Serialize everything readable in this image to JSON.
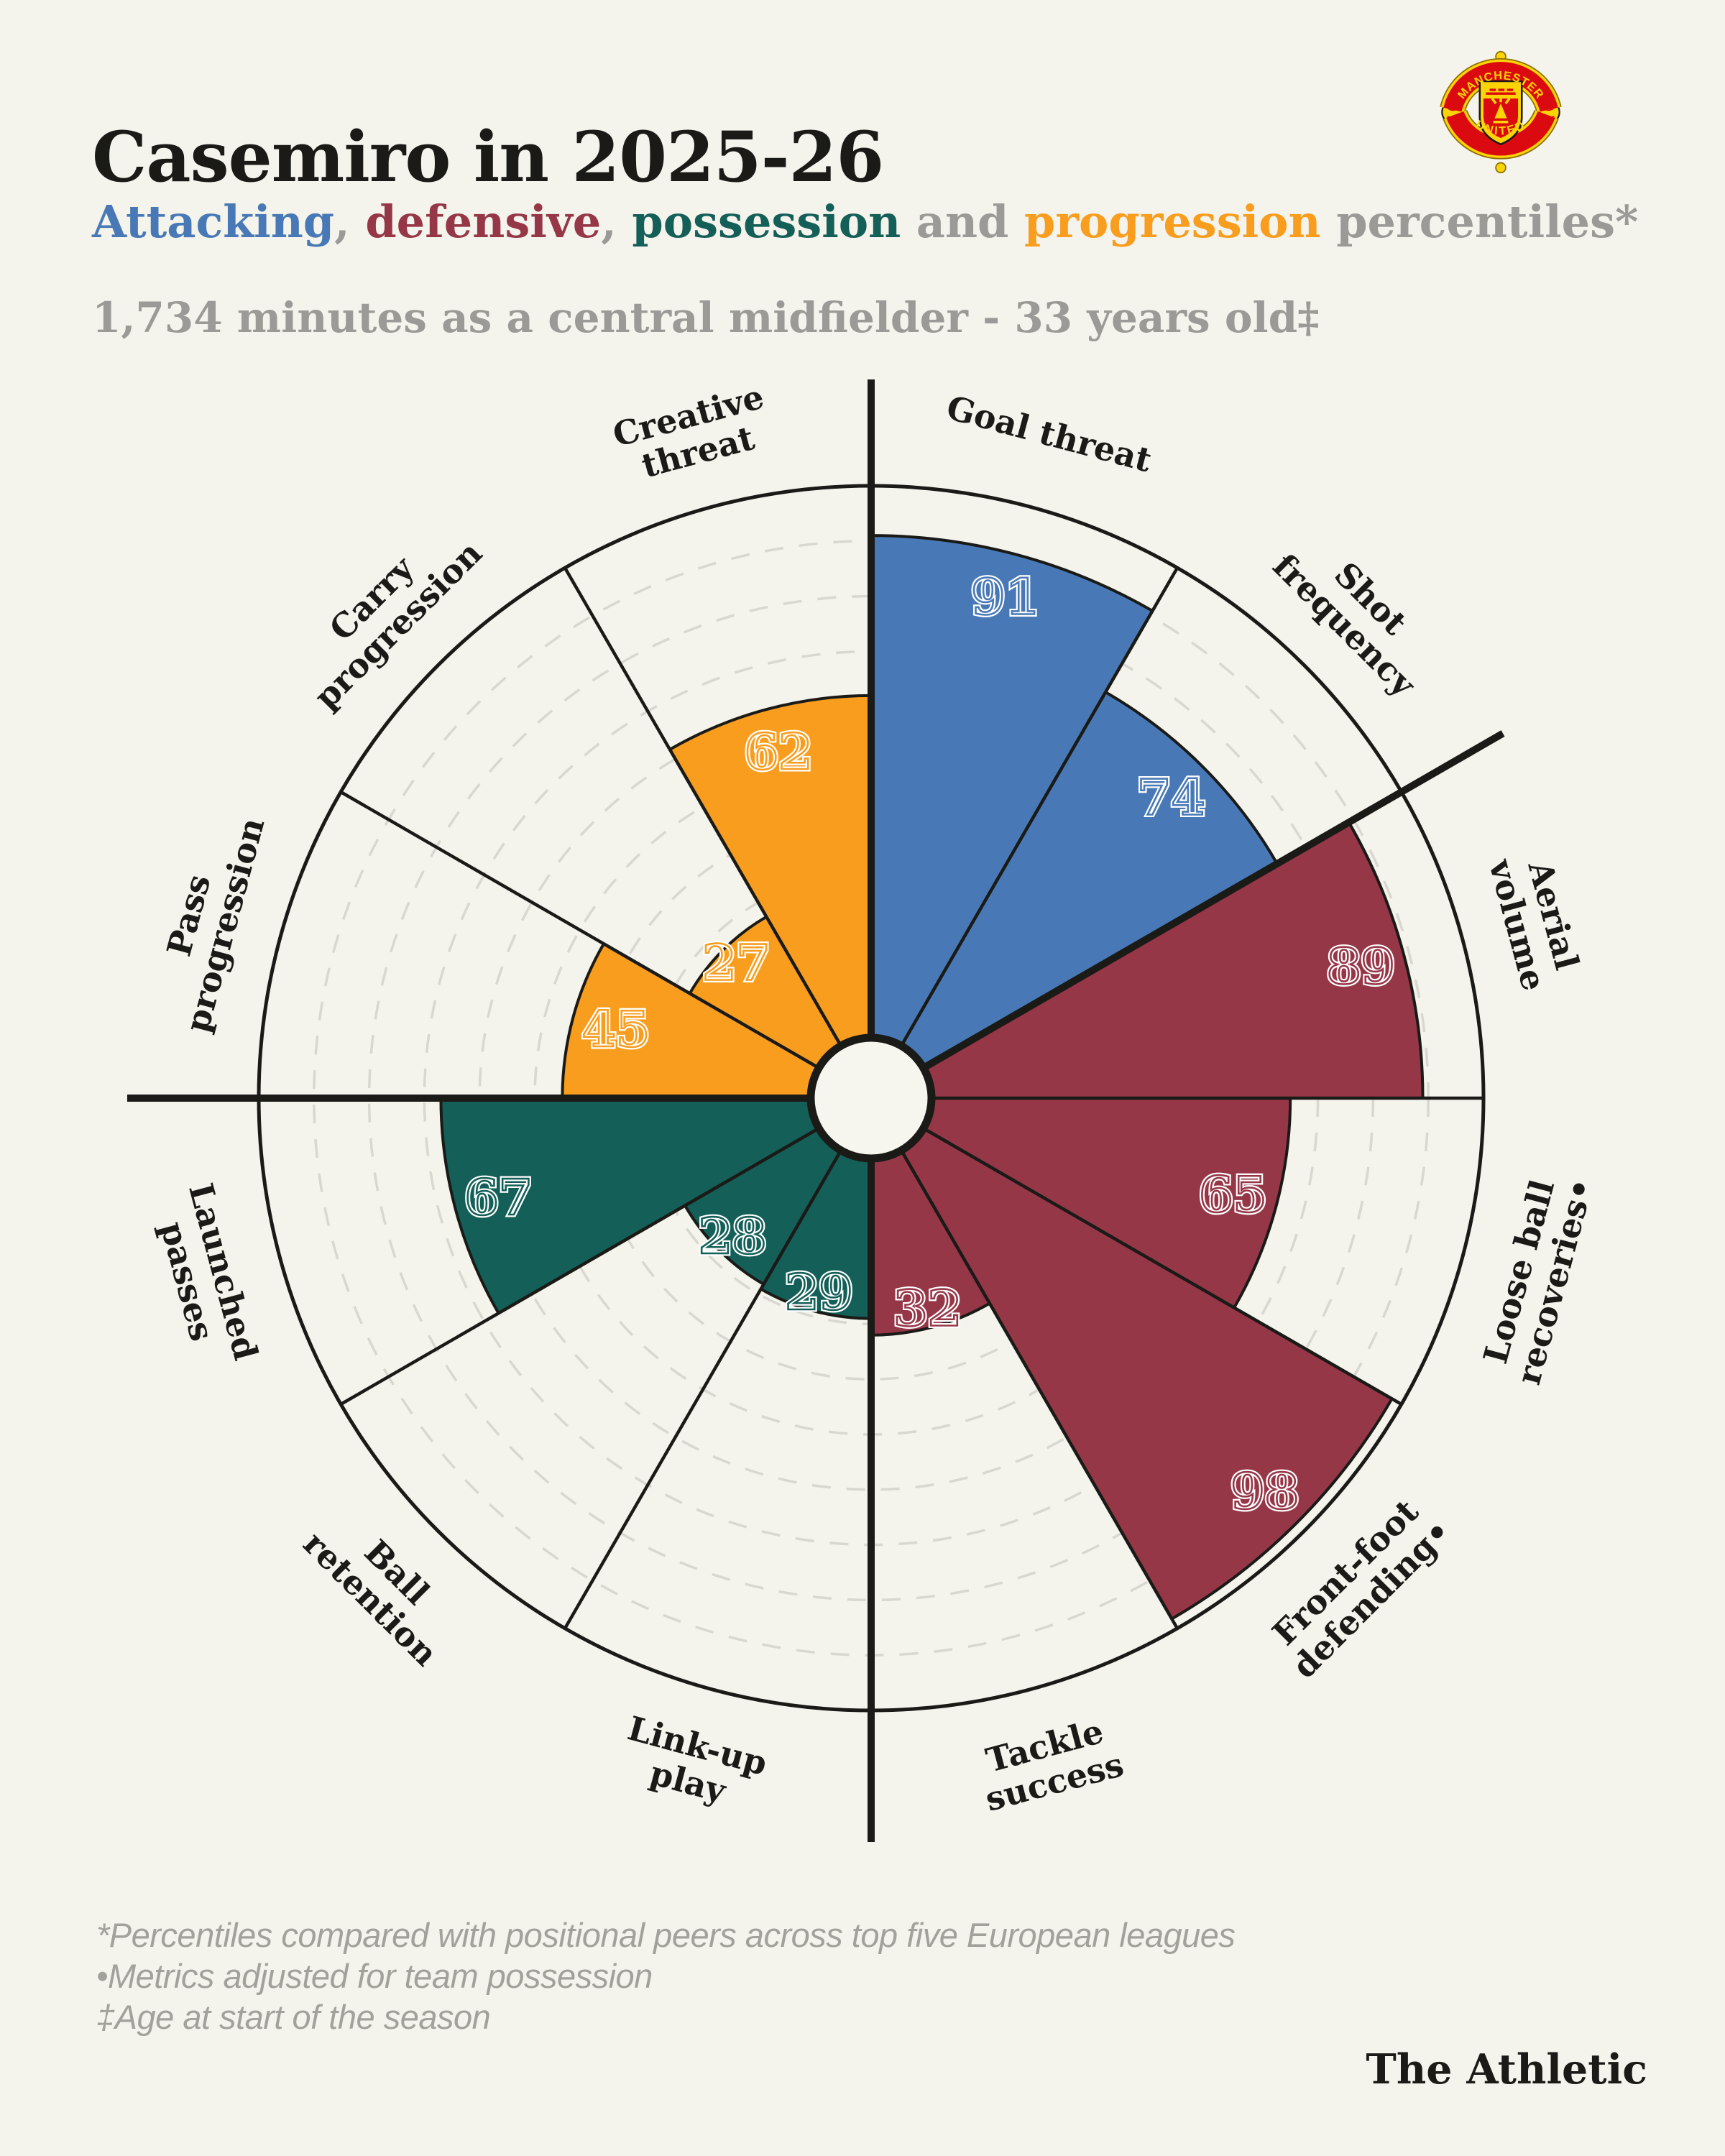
{
  "page": {
    "background": "#f4f3ec",
    "ink": "#1a1a17",
    "muted_text": "#9b9a96",
    "footnote_text": "#a2a19b",
    "grid_line": "#d8d7d0",
    "hub_fill": "#f6f5ee"
  },
  "header": {
    "title": "Casemiro in 2025-26",
    "subtitle_parts": [
      {
        "text": "Attacking",
        "color_key": "attacking"
      },
      {
        "text": ", ",
        "color_key": "muted"
      },
      {
        "text": "defensive",
        "color_key": "defensive"
      },
      {
        "text": ", ",
        "color_key": "muted"
      },
      {
        "text": "possession",
        "color_key": "possession"
      },
      {
        "text": " and ",
        "color_key": "muted"
      },
      {
        "text": "progression",
        "color_key": "progression"
      },
      {
        "text": " percentiles*",
        "color_key": "muted"
      }
    ],
    "context_line": "1,734 minutes as a central midfielder - 33 years old‡",
    "club_badge": {
      "name": "Manchester United crest",
      "top_text": "MANCHESTER",
      "bottom_text": "UNITED",
      "red": "#da0a10",
      "gold": "#fcd405"
    }
  },
  "colors": {
    "attacking": "#4879b6",
    "defensive": "#963748",
    "possession": "#145f58",
    "progression": "#f89d1e",
    "muted": "#9b9a96"
  },
  "chart_data": {
    "type": "pizza-radar",
    "units": "percentile",
    "scale_min": 0,
    "scale_max": 100,
    "start_angle_deg": 0,
    "direction": "clockwise",
    "slice_span_deg": 30,
    "gridlines": [
      10,
      20,
      30,
      40,
      50,
      60,
      70,
      80,
      90
    ],
    "group_boundary_angles_deg": [
      0,
      60,
      180,
      270
    ],
    "categories": [
      {
        "label": "Goal threat",
        "lines": [
          "Goal threat"
        ],
        "value": 91,
        "group": "attacking"
      },
      {
        "label": "Shot frequency",
        "lines": [
          "Shot",
          "frequency"
        ],
        "value": 74,
        "group": "attacking"
      },
      {
        "label": "Aerial volume",
        "lines": [
          "Aerial",
          "volume"
        ],
        "value": 89,
        "group": "defensive"
      },
      {
        "label": "Loose ball recoveries•",
        "lines": [
          "Loose ball",
          "recoveries•"
        ],
        "value": 65,
        "group": "defensive"
      },
      {
        "label": "Front-foot defending•",
        "lines": [
          "Front-foot",
          "defending•"
        ],
        "value": 98,
        "group": "defensive"
      },
      {
        "label": "Tackle success",
        "lines": [
          "Tackle",
          "success"
        ],
        "value": 32,
        "group": "defensive"
      },
      {
        "label": "Link-up play",
        "lines": [
          "Link-up",
          "play"
        ],
        "value": 29,
        "group": "possession"
      },
      {
        "label": "Ball retention",
        "lines": [
          "Ball",
          "retention"
        ],
        "value": 28,
        "group": "possession"
      },
      {
        "label": "Launched passes",
        "lines": [
          "Launched",
          "passes"
        ],
        "value": 67,
        "group": "possession"
      },
      {
        "label": "Pass progression",
        "lines": [
          "Pass",
          "progression"
        ],
        "value": 45,
        "group": "progression"
      },
      {
        "label": "Carry progression",
        "lines": [
          "Carry",
          "progression"
        ],
        "value": 27,
        "group": "progression"
      },
      {
        "label": "Creative threat",
        "lines": [
          "Creative",
          "threat"
        ],
        "value": 62,
        "group": "progression"
      }
    ]
  },
  "footnotes": [
    "*Percentiles compared with positional peers across top five European leagues",
    "•Metrics adjusted for team possession",
    "‡Age at start of the season"
  ],
  "credit": "The Athletic"
}
